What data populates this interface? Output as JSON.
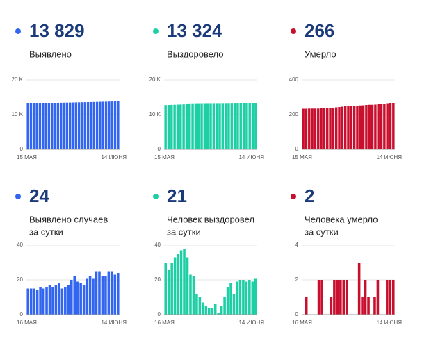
{
  "chart_data": [
    {
      "type": "bar",
      "headline": "13 829",
      "label": [
        "Выявлено"
      ],
      "color": "#3366f0",
      "categories": [
        "15 МАЯ",
        null,
        null,
        null,
        null,
        null,
        null,
        null,
        null,
        null,
        null,
        null,
        null,
        null,
        null,
        null,
        null,
        null,
        null,
        null,
        null,
        null,
        null,
        null,
        null,
        null,
        null,
        null,
        null,
        null,
        "14 ИЮНЯ"
      ],
      "values": [
        13256,
        13271,
        13286,
        13301,
        13315,
        13331,
        13346,
        13362,
        13379,
        13395,
        13412,
        13430,
        13445,
        13461,
        13478,
        13498,
        13520,
        13539,
        13557,
        13574,
        13595,
        13617,
        13638,
        13663,
        13688,
        13710,
        13732,
        13757,
        13782,
        13805,
        13829
      ],
      "ylim": [
        0,
        20000
      ],
      "yticks": [
        0,
        {
          "value": 10000,
          "label": "10 K"
        },
        {
          "value": 20000,
          "label": "20 K"
        }
      ]
    },
    {
      "type": "bar",
      "headline": "13 324",
      "label": [
        "Выздоровело"
      ],
      "color": "#1ecfa5",
      "categories": [
        "15 МАЯ",
        null,
        null,
        null,
        null,
        null,
        null,
        null,
        null,
        null,
        null,
        null,
        null,
        null,
        null,
        null,
        null,
        null,
        null,
        null,
        null,
        null,
        null,
        null,
        null,
        null,
        null,
        null,
        null,
        null,
        "14 ИЮНЯ"
      ],
      "values": [
        12769,
        12799,
        12825,
        12855,
        12888,
        12923,
        12960,
        12998,
        13031,
        13054,
        13076,
        13088,
        13098,
        13105,
        13110,
        13114,
        13118,
        13124,
        13125,
        13130,
        13140,
        13156,
        13174,
        13186,
        13205,
        13225,
        13245,
        13264,
        13284,
        13303,
        13324
      ],
      "ylim": [
        0,
        20000
      ],
      "yticks": [
        0,
        {
          "value": 10000,
          "label": "10 K"
        },
        {
          "value": 20000,
          "label": "20 K"
        }
      ]
    },
    {
      "type": "bar",
      "headline": "266",
      "label": [
        "Умерло"
      ],
      "color": "#c8102e",
      "categories": [
        "15 МАЯ",
        null,
        null,
        null,
        null,
        null,
        null,
        null,
        null,
        null,
        null,
        null,
        null,
        null,
        null,
        null,
        null,
        null,
        null,
        null,
        null,
        null,
        null,
        null,
        null,
        null,
        null,
        null,
        null,
        null,
        "14 ИЮНЯ"
      ],
      "values": [
        234,
        234,
        235,
        235,
        235,
        235,
        237,
        239,
        239,
        239,
        240,
        242,
        244,
        246,
        248,
        250,
        250,
        250,
        250,
        253,
        254,
        256,
        257,
        257,
        258,
        260,
        260,
        260,
        262,
        264,
        266
      ],
      "ylim": [
        0,
        400
      ],
      "yticks": [
        0,
        200,
        400
      ]
    },
    {
      "type": "bar",
      "headline": "24",
      "label": [
        "Выявлено случаев",
        "за сутки"
      ],
      "color": "#3366f0",
      "categories": [
        "16 МАЯ",
        null,
        null,
        null,
        null,
        null,
        null,
        null,
        null,
        null,
        null,
        null,
        null,
        null,
        null,
        null,
        null,
        null,
        null,
        null,
        null,
        null,
        null,
        null,
        null,
        null,
        null,
        null,
        null,
        "14 ИЮНЯ"
      ],
      "values": [
        15,
        15,
        15,
        14,
        16,
        15,
        16,
        17,
        16,
        17,
        18,
        15,
        16,
        17,
        20,
        22,
        19,
        18,
        17,
        21,
        22,
        21,
        25,
        25,
        22,
        22,
        25,
        25,
        23,
        24
      ],
      "ylim": [
        0,
        40
      ],
      "yticks": [
        0,
        20,
        40
      ]
    },
    {
      "type": "bar",
      "headline": "21",
      "label": [
        "Человек выздоровел",
        "за сутки"
      ],
      "color": "#1ecfa5",
      "categories": [
        "16 МАЯ",
        null,
        null,
        null,
        null,
        null,
        null,
        null,
        null,
        null,
        null,
        null,
        null,
        null,
        null,
        null,
        null,
        null,
        null,
        null,
        null,
        null,
        null,
        null,
        null,
        null,
        null,
        null,
        null,
        "14 ИЮНЯ"
      ],
      "values": [
        30,
        26,
        30,
        33,
        35,
        37,
        38,
        33,
        23,
        22,
        12,
        10,
        7,
        5,
        4,
        4,
        6,
        1,
        5,
        10,
        16,
        18,
        12,
        19,
        20,
        20,
        19,
        20,
        19,
        21
      ],
      "ylim": [
        0,
        40
      ],
      "yticks": [
        0,
        20,
        40
      ]
    },
    {
      "type": "bar",
      "headline": "2",
      "label": [
        "Человека умерло",
        "за сутки"
      ],
      "color": "#c8102e",
      "categories": [
        "16 МАЯ",
        null,
        null,
        null,
        null,
        null,
        null,
        null,
        null,
        null,
        null,
        null,
        null,
        null,
        null,
        null,
        null,
        null,
        null,
        null,
        null,
        null,
        null,
        null,
        null,
        null,
        null,
        null,
        null,
        "14 ИЮНЯ"
      ],
      "values": [
        0,
        1,
        0,
        0,
        0,
        2,
        2,
        0,
        0,
        1,
        2,
        2,
        2,
        2,
        2,
        0,
        0,
        0,
        3,
        1,
        2,
        1,
        0,
        1,
        2,
        0,
        0,
        2,
        2,
        2
      ],
      "ylim": [
        0,
        4
      ],
      "yticks": [
        0,
        2,
        4
      ]
    }
  ]
}
